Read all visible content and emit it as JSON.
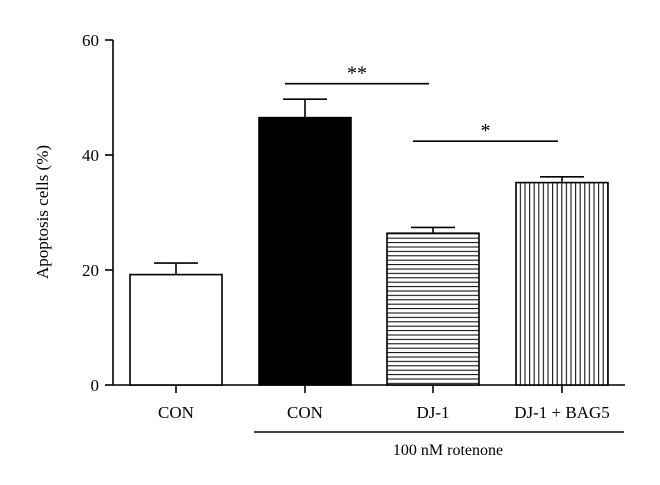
{
  "chart_data": {
    "type": "bar",
    "categories": [
      "CON",
      "CON",
      "DJ-1",
      "DJ-1 + BAG5"
    ],
    "values": [
      19.2,
      46.5,
      26.4,
      35.2
    ],
    "errors": [
      2.0,
      3.2,
      1.0,
      1.0
    ],
    "bar_styles": [
      "white",
      "black",
      "horizontal-hatch",
      "vertical-hatch"
    ],
    "ylabel": "Apoptosis cells (%)",
    "xlabel": "",
    "ylim": [
      0,
      60
    ],
    "yticks": [
      "0",
      "20",
      "40",
      "60"
    ],
    "ytick_values": [
      0,
      20,
      40,
      60
    ],
    "group_label": "100 nM rotenone",
    "group_members": [
      1,
      2,
      3
    ],
    "significance": [
      {
        "from": 1,
        "to": 2,
        "label": "**",
        "y": 52.4
      },
      {
        "from": 2,
        "to": 3,
        "label": "*",
        "y": 42.4
      }
    ],
    "grid": false
  }
}
